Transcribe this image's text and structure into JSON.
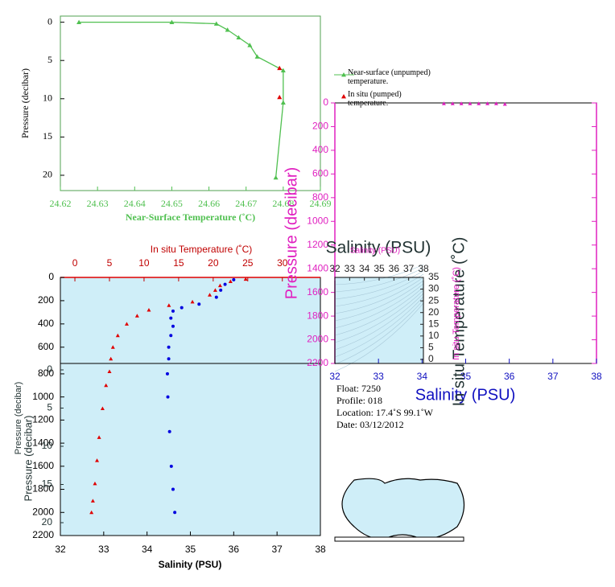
{
  "chart_data": [
    {
      "type": "line",
      "xlabel": "Near-Surface Temperature (˚C)",
      "ylabel": "Pressure (decibar)",
      "xlim": [
        24.62,
        24.69
      ],
      "xticks": [
        24.62,
        24.63,
        24.64,
        24.65,
        24.66,
        24.67,
        24.68,
        24.69
      ],
      "ylim": [
        -0.8,
        22
      ],
      "yticks": [
        0,
        5,
        10,
        15,
        20
      ],
      "series": [
        {
          "name": "Near-surface (unpumped) temperature.",
          "color": "#50c050",
          "x": [
            24.625,
            24.65,
            24.662,
            24.665,
            24.668,
            24.671,
            24.673,
            24.68,
            24.68,
            24.678
          ],
          "y": [
            0,
            0,
            0.2,
            1,
            2,
            3,
            4.5,
            6.3,
            10.5,
            20.3
          ]
        },
        {
          "name": "In situ (pumped) temperature.",
          "color": "#e00000",
          "x": [
            24.679,
            24.679
          ],
          "y": [
            6,
            9.8
          ]
        }
      ]
    },
    {
      "type": "profile",
      "xlabel": "Salinity (PSU)",
      "x2label": "In situ Temperature (˚C)",
      "ylabel": "Pressure (decibar)",
      "xlim": [
        32,
        38
      ],
      "xticks": [
        32,
        33,
        34,
        35,
        36,
        37,
        38
      ],
      "x2lim": [
        -2.1,
        35.5
      ],
      "x2ticks": [
        0,
        5,
        10,
        15,
        20,
        25,
        30
      ],
      "ylim_upper": [
        0,
        740
      ],
      "yticks_upper": [
        0,
        200,
        400,
        600
      ],
      "ylim_lower": [
        710,
        2200
      ],
      "yticks_lower": [
        800,
        1000,
        1200,
        1400,
        1600,
        1800,
        2000,
        2200
      ],
      "series": [
        {
          "name": "In situ Temperature (˚C)",
          "color": "#e00000",
          "axis": "x2",
          "x": [
            24.7,
            22.5,
            21,
            20.3,
            19.5,
            17,
            13.6,
            10.7,
            9,
            7.5,
            6.2,
            5.5,
            5.2,
            5,
            4.5,
            4,
            3.5,
            3.2,
            2.9,
            2.6,
            2.4
          ],
          "y": [
            15,
            35,
            70,
            110,
            150,
            210,
            240,
            280,
            330,
            400,
            500,
            600,
            700,
            780,
            900,
            1100,
            1350,
            1550,
            1750,
            1900,
            2000
          ]
        },
        {
          "name": "Salinity (PSU)",
          "color": "#0000e0",
          "x": [
            36.0,
            35.8,
            35.7,
            35.6,
            35.2,
            34.8,
            34.6,
            34.55,
            34.6,
            34.55,
            34.5,
            34.5,
            34.47,
            34.48,
            34.52,
            34.56,
            34.6,
            34.64
          ],
          "y": [
            20,
            60,
            110,
            170,
            230,
            260,
            290,
            350,
            420,
            500,
            600,
            700,
            800,
            1000,
            1300,
            1600,
            1800,
            2000
          ]
        }
      ]
    },
    {
      "type": "scatter",
      "xlabel": "Salinity (PSU)",
      "ylabel": "Pressure (decibar)",
      "y2label": "In situ Temperature (˚C)",
      "xlim": [
        32,
        38
      ],
      "xticks": [
        32,
        33,
        34,
        35,
        36,
        37,
        38
      ],
      "ylim": [
        0,
        2200
      ],
      "yticks": [
        0,
        200,
        400,
        600,
        800,
        1000,
        1200,
        1400,
        1600,
        1800,
        2000,
        2200
      ],
      "series": [
        {
          "name": "Pressure (decibar)",
          "color": "#e020c0",
          "x": [
            34.5,
            34.7,
            34.9,
            35.1,
            35.3,
            35.5,
            35.7,
            35.9
          ],
          "y": [
            5,
            5,
            5,
            5,
            5,
            5,
            5,
            10
          ]
        }
      ]
    },
    {
      "type": "ts-inset",
      "title": "Salinity (PSU)",
      "xlabel": "Salinity (PSU)",
      "ylabel": "In situ Temperature (˚C)",
      "xlim": [
        32,
        38
      ],
      "xticks": [
        32,
        33,
        34,
        35,
        36,
        37,
        38
      ],
      "ylim": [
        0,
        35
      ],
      "yticks": [
        0,
        5,
        10,
        15,
        20,
        25,
        30,
        35
      ]
    },
    {
      "type": "axis",
      "ylabel": "Pressure (decibar)",
      "ylim": [
        0,
        20
      ],
      "yticks": [
        0,
        5,
        10,
        15,
        20
      ]
    }
  ],
  "float_info": [
    "Float: 7250",
    "Profile: 018",
    "Location: 17.4˚S 99.1˚W",
    "Date: 03/12/2012"
  ]
}
